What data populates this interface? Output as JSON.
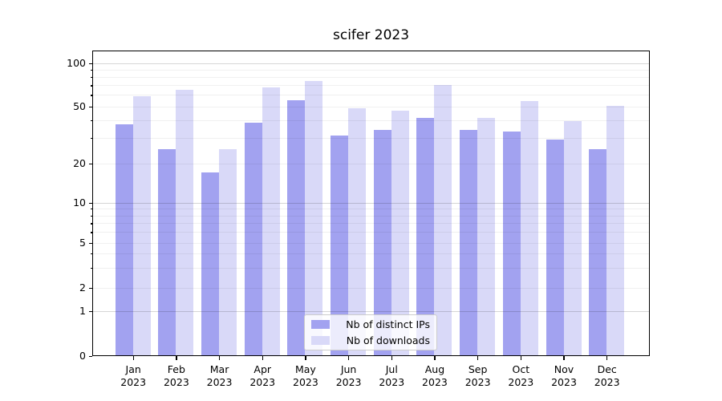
{
  "title": "scifer 2023",
  "chart_data": {
    "type": "bar",
    "title": "scifer 2023",
    "x": {
      "categories": [
        "Jan",
        "Feb",
        "Mar",
        "Apr",
        "May",
        "Jun",
        "Jul",
        "Aug",
        "Sep",
        "Oct",
        "Nov",
        "Dec"
      ],
      "year_line": "2023"
    },
    "y": {
      "scale": "asinh-log",
      "ticks": [
        0,
        1,
        2,
        5,
        10,
        20,
        50,
        100
      ],
      "major_gridlines": [
        1,
        10,
        100
      ],
      "minor_gridlines": [
        2,
        3,
        4,
        5,
        6,
        7,
        8,
        9,
        20,
        30,
        40,
        50,
        60,
        70,
        80,
        90
      ],
      "ylim": [
        0,
        120
      ],
      "grid": true
    },
    "series": [
      {
        "name": "Nb of distinct IPs",
        "color": "#a2a2f0",
        "values": [
          37,
          25,
          17,
          38,
          55,
          31,
          34,
          41,
          34,
          33,
          29,
          25
        ]
      },
      {
        "name": "Nb of downloads",
        "color": "#d9d9f8",
        "values": [
          58,
          65,
          25,
          67,
          74,
          48,
          46,
          70,
          41,
          54,
          39,
          50
        ]
      }
    ],
    "legend": {
      "position": "lower center"
    }
  }
}
